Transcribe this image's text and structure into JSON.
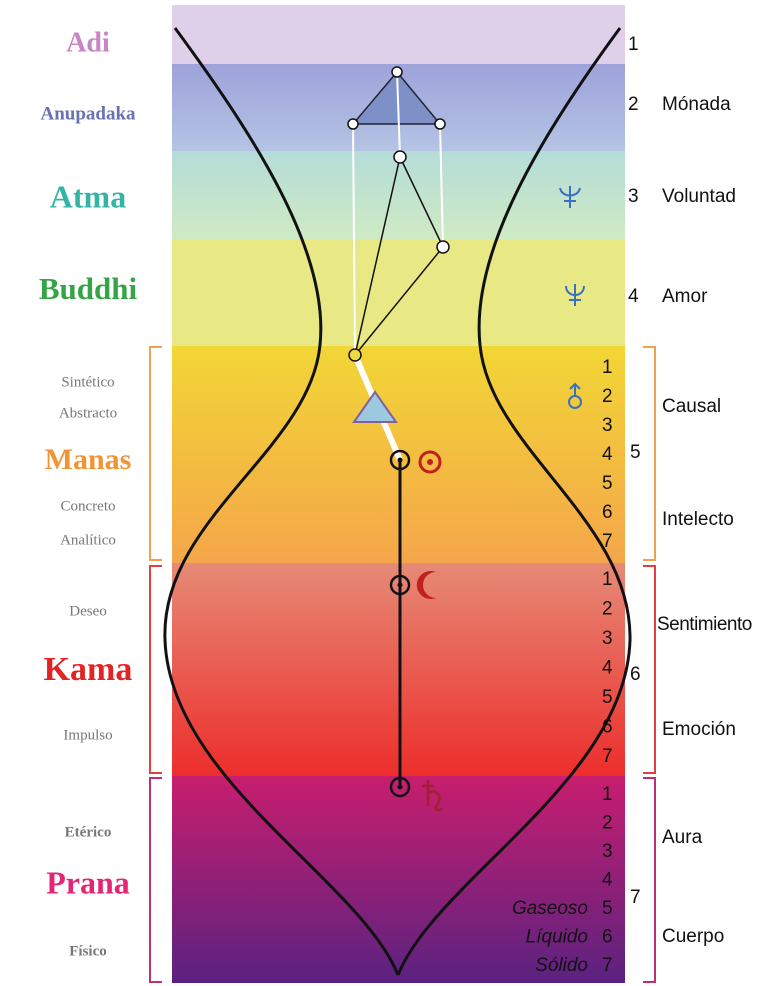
{
  "planes": [
    {
      "name": "Adi",
      "number": 1
    },
    {
      "name": "Anupadaka",
      "number": 2,
      "label": "Mónada"
    },
    {
      "name": "Atma",
      "number": 3,
      "label": "Voluntad"
    },
    {
      "name": "Buddhi",
      "number": 4,
      "label": "Amor"
    },
    {
      "name": "Manas",
      "number": 5,
      "left_labels": [
        "Sintético",
        "Abstracto",
        "Concreto",
        "Analítico"
      ],
      "right_labels": [
        "Causal",
        "Intelecto"
      ],
      "subplanes": [
        1,
        2,
        3,
        4,
        5,
        6,
        7
      ]
    },
    {
      "name": "Kama",
      "number": 6,
      "left_labels": [
        "Deseo",
        "Impulso"
      ],
      "right_labels": [
        "Sentimiento",
        "Emoción"
      ],
      "subplanes": [
        1,
        2,
        3,
        4,
        5,
        6,
        7
      ]
    },
    {
      "name": "Prana",
      "number": 7,
      "left_labels": [
        "Etérico",
        "Físico"
      ],
      "right_labels": [
        "Aura",
        "Cuerpo"
      ],
      "subplanes": [
        1,
        2,
        3,
        4,
        5,
        6,
        7
      ],
      "states": [
        "Gaseoso",
        "Líquido",
        "Sólido"
      ]
    }
  ]
}
